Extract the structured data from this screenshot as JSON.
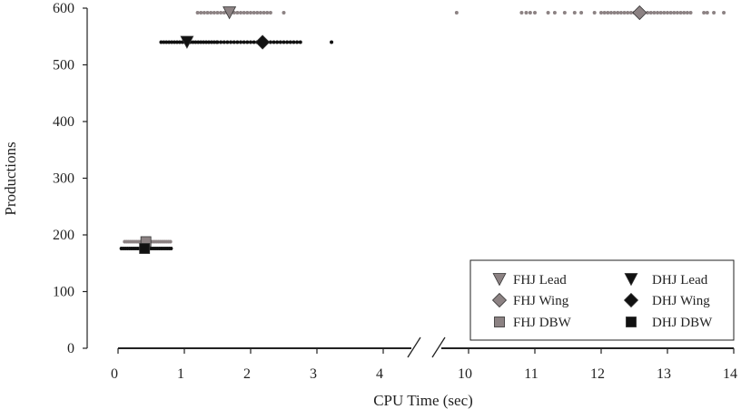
{
  "chart_data": {
    "type": "scatter",
    "title": "",
    "xlabel": "CPU Time (sec)",
    "ylabel": "Productions",
    "ylim": [
      0,
      600
    ],
    "y_ticks": [
      0,
      100,
      200,
      300,
      400,
      500,
      600
    ],
    "x_broken_axis": true,
    "x_segments": [
      {
        "range": [
          0,
          4.4
        ],
        "ticks": [
          0,
          1,
          2,
          3,
          4
        ]
      },
      {
        "range": [
          9.5,
          14
        ],
        "ticks": [
          10,
          11,
          12,
          13,
          14
        ]
      }
    ],
    "grid": false,
    "legend_position": "bottom-right",
    "legend": [
      {
        "label": "FHJ Lead",
        "marker": "triangle-down",
        "color": "#8c8283"
      },
      {
        "label": "DHJ Lead",
        "marker": "triangle-down",
        "color": "#111111"
      },
      {
        "label": "FHJ Wing",
        "marker": "diamond",
        "color": "#8c8283"
      },
      {
        "label": "DHJ Wing",
        "marker": "diamond",
        "color": "#111111"
      },
      {
        "label": "FHJ DBW",
        "marker": "square",
        "color": "#8c8283"
      },
      {
        "label": "DHJ DBW",
        "marker": "square",
        "color": "#111111"
      }
    ],
    "series": [
      {
        "name": "FHJ Lead",
        "color": "#8c8283",
        "y": 592,
        "mean": {
          "x": 1.68,
          "y": 592
        },
        "points_x": [
          1.2,
          1.25,
          1.3,
          1.35,
          1.4,
          1.45,
          1.5,
          1.55,
          1.6,
          1.65,
          1.75,
          1.8,
          1.85,
          1.9,
          1.95,
          2.0,
          2.05,
          2.1,
          2.15,
          2.2,
          2.25,
          2.3,
          2.5
        ]
      },
      {
        "name": "FHJ Wing",
        "color": "#8c8283",
        "y": 592,
        "mean": {
          "x": 12.58,
          "y": 592
        },
        "points_x": [
          9.82,
          10.8,
          10.87,
          10.93,
          11.0,
          11.2,
          11.3,
          11.45,
          11.6,
          11.7,
          11.9,
          12.0,
          12.05,
          12.1,
          12.15,
          12.2,
          12.25,
          12.3,
          12.35,
          12.4,
          12.45,
          12.5,
          12.7,
          12.75,
          12.8,
          12.85,
          12.9,
          12.95,
          13.0,
          13.05,
          13.1,
          13.15,
          13.2,
          13.25,
          13.3,
          13.35,
          13.55,
          13.6,
          13.7,
          13.85
        ]
      },
      {
        "name": "DHJ Lead",
        "color": "#111111",
        "y": 540,
        "mean": {
          "x": 1.04,
          "y": 540
        },
        "points_x": [
          0.65,
          0.69,
          0.73,
          0.77,
          0.81,
          0.85,
          0.89,
          0.93,
          0.97,
          1.01,
          1.05,
          1.09,
          1.13,
          1.17,
          1.21,
          1.25,
          1.29,
          1.33,
          1.37,
          1.41,
          1.45,
          1.49
        ]
      },
      {
        "name": "DHJ Wing",
        "color": "#111111",
        "y": 540,
        "mean": {
          "x": 2.18,
          "y": 540
        },
        "points_x": [
          1.5,
          1.55,
          1.6,
          1.65,
          1.7,
          1.75,
          1.8,
          1.85,
          1.9,
          1.95,
          2.0,
          2.05,
          2.1,
          2.15,
          2.2,
          2.25,
          2.3,
          2.35,
          2.4,
          2.45,
          2.5,
          2.55,
          2.6,
          2.65,
          2.7,
          2.75,
          3.22
        ]
      },
      {
        "name": "FHJ DBW",
        "color": "#8c8283",
        "y": 188,
        "mean": {
          "x": 0.42,
          "y": 188
        },
        "points_x": [
          0.1,
          0.13,
          0.16,
          0.19,
          0.22,
          0.25,
          0.28,
          0.31,
          0.34,
          0.37,
          0.4,
          0.43,
          0.46,
          0.49,
          0.52,
          0.55,
          0.58,
          0.61,
          0.64,
          0.67,
          0.7,
          0.73,
          0.76,
          0.79
        ]
      },
      {
        "name": "DHJ DBW",
        "color": "#111111",
        "y": 176,
        "mean": {
          "x": 0.4,
          "y": 176
        },
        "points_x": [
          0.05,
          0.08,
          0.11,
          0.14,
          0.17,
          0.2,
          0.23,
          0.26,
          0.29,
          0.32,
          0.35,
          0.38,
          0.41,
          0.44,
          0.47,
          0.5,
          0.53,
          0.56,
          0.59,
          0.62,
          0.65,
          0.68,
          0.71,
          0.74,
          0.77,
          0.8
        ]
      }
    ]
  }
}
